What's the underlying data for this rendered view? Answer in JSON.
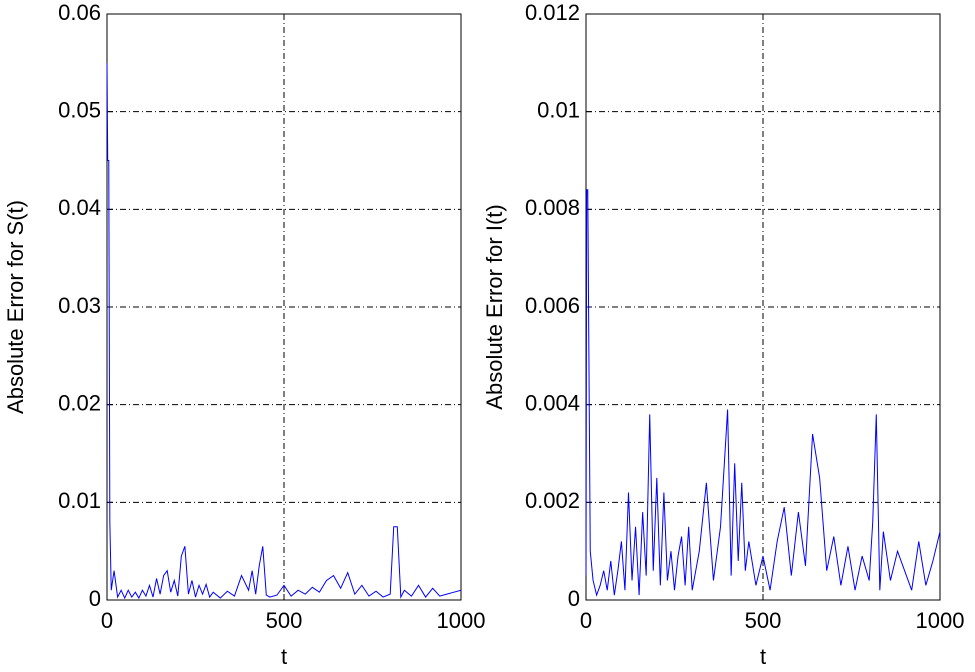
{
  "chart_data": [
    {
      "type": "line",
      "xlabel": "t",
      "ylabel": "Absolute Error for S(t)",
      "x": [
        0,
        2,
        5,
        8,
        12,
        20,
        30,
        40,
        50,
        60,
        70,
        80,
        90,
        100,
        110,
        120,
        130,
        140,
        150,
        160,
        170,
        180,
        190,
        200,
        210,
        220,
        230,
        240,
        250,
        260,
        270,
        280,
        290,
        300,
        320,
        340,
        360,
        380,
        400,
        410,
        420,
        430,
        440,
        450,
        460,
        480,
        500,
        520,
        540,
        560,
        580,
        600,
        620,
        640,
        660,
        680,
        700,
        720,
        740,
        760,
        780,
        800,
        810,
        820,
        830,
        840,
        860,
        880,
        900,
        920,
        940,
        960,
        980,
        1000
      ],
      "series": [
        {
          "color": "#0000ff",
          "values": [
            0.055,
            0.045,
            0.045,
            0.008,
            0.001,
            0.003,
            0.0003,
            0.001,
            0.0002,
            0.001,
            0.0003,
            0.0008,
            0.0002,
            0.001,
            0.0004,
            0.0015,
            0.0003,
            0.0022,
            0.0006,
            0.0025,
            0.003,
            0.0008,
            0.002,
            0.0004,
            0.0045,
            0.0055,
            0.0006,
            0.002,
            0.0003,
            0.0015,
            0.0006,
            0.0016,
            0.0003,
            0.0008,
            0.0002,
            0.0009,
            0.0004,
            0.0025,
            0.001,
            0.003,
            0.0006,
            0.0035,
            0.0055,
            0.0005,
            0.0003,
            0.0005,
            0.0015,
            0.0004,
            0.001,
            0.0006,
            0.0013,
            0.0008,
            0.002,
            0.0025,
            0.0012,
            0.0028,
            0.0006,
            0.0015,
            0.0004,
            0.0009,
            0.0003,
            0.0006,
            0.0075,
            0.0075,
            0.0003,
            0.001,
            0.0004,
            0.0015,
            0.0003,
            0.0012,
            0.0004,
            0.0006,
            0.0008,
            0.001
          ]
        }
      ],
      "xlim": [
        0,
        1000
      ],
      "xticks": [
        0,
        500,
        1000
      ],
      "ylim": [
        0,
        0.06
      ],
      "yticks": [
        0,
        0.01,
        0.02,
        0.03,
        0.04,
        0.05,
        0.06
      ],
      "grid": true
    },
    {
      "type": "line",
      "xlabel": "t",
      "ylabel": "Absolute Error for I(t)",
      "x": [
        0,
        2,
        5,
        8,
        12,
        20,
        30,
        40,
        50,
        60,
        70,
        80,
        90,
        100,
        110,
        120,
        130,
        140,
        150,
        160,
        170,
        180,
        190,
        200,
        210,
        220,
        230,
        240,
        250,
        260,
        270,
        280,
        290,
        300,
        320,
        340,
        360,
        380,
        400,
        410,
        420,
        430,
        440,
        450,
        460,
        480,
        500,
        520,
        540,
        560,
        580,
        600,
        620,
        640,
        660,
        680,
        700,
        720,
        740,
        760,
        780,
        800,
        810,
        820,
        830,
        840,
        860,
        880,
        900,
        920,
        940,
        960,
        980,
        1000
      ],
      "series": [
        {
          "color": "#0000ff",
          "values": [
            0.0005,
            0.0084,
            0.0084,
            0.0052,
            0.001,
            0.0004,
            0.0001,
            0.0003,
            0.0006,
            0.0002,
            0.0008,
            0.0001,
            0.0006,
            0.0012,
            0.0002,
            0.0022,
            0.0004,
            0.0015,
            0.0001,
            0.0018,
            0.0005,
            0.0038,
            0.0006,
            0.0025,
            0.0003,
            0.0022,
            0.0004,
            0.001,
            0.0002,
            0.0009,
            0.0013,
            0.0003,
            0.0015,
            0.0002,
            0.001,
            0.0024,
            0.0004,
            0.0015,
            0.0039,
            0.0005,
            0.0028,
            0.0008,
            0.0024,
            0.0006,
            0.0012,
            0.0003,
            0.0009,
            0.0002,
            0.0012,
            0.0019,
            0.0005,
            0.0018,
            0.0007,
            0.0034,
            0.0025,
            0.0006,
            0.0013,
            0.0003,
            0.0011,
            0.0002,
            0.0009,
            0.0004,
            0.0016,
            0.0038,
            0.0002,
            0.0014,
            0.0004,
            0.001,
            0.0006,
            0.0002,
            0.0012,
            0.0003,
            0.0008,
            0.0014
          ]
        }
      ],
      "xlim": [
        0,
        1000
      ],
      "xticks": [
        0,
        500,
        1000
      ],
      "ylim": [
        0,
        0.012
      ],
      "yticks": [
        0,
        0.002,
        0.004,
        0.006,
        0.008,
        0.01,
        0.012
      ],
      "grid": true
    }
  ]
}
